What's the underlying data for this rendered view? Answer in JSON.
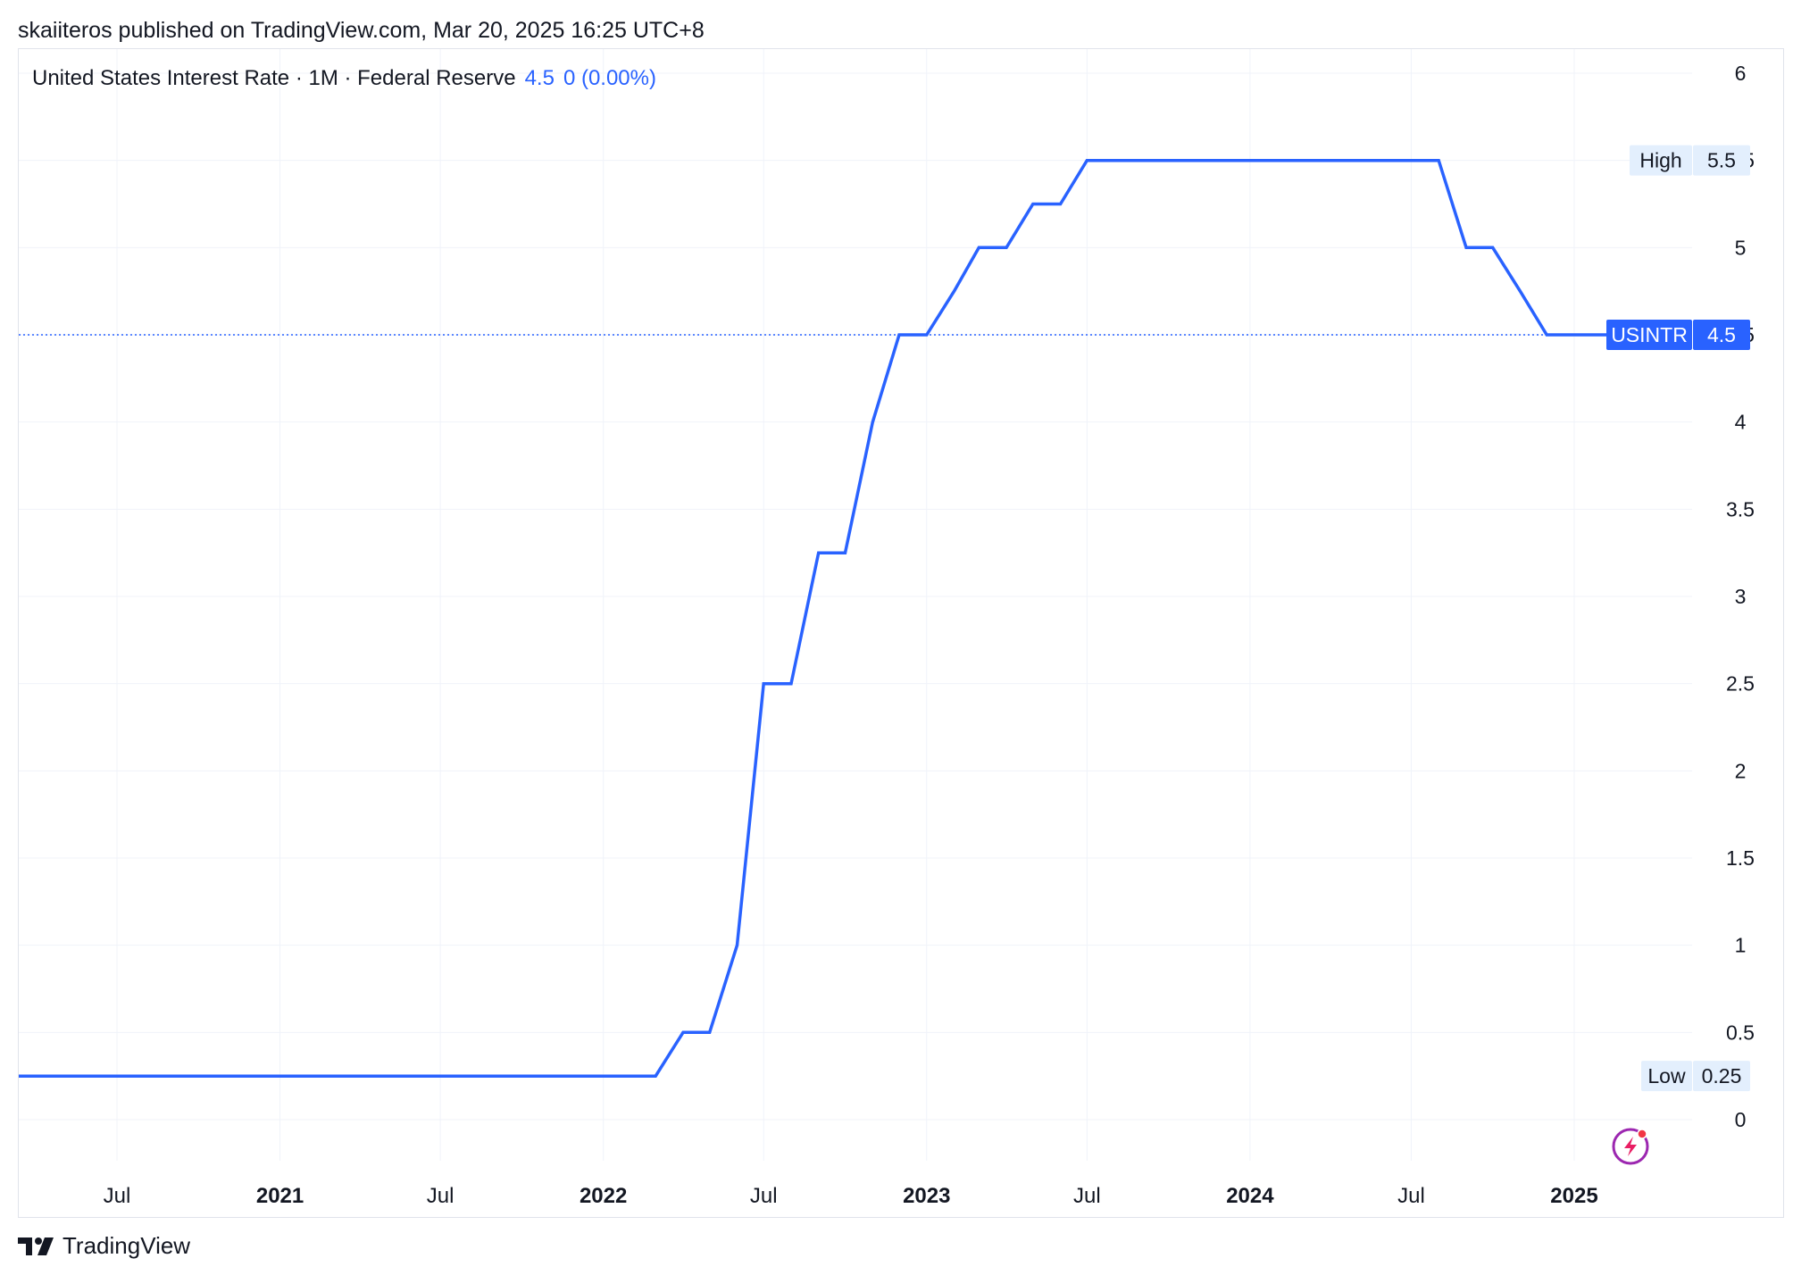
{
  "header": {
    "text": "skaiiteros published on TradingView.com, Mar 20, 2025 16:25 UTC+8"
  },
  "legend": {
    "title": "United States Interest Rate · 1M · Federal Reserve",
    "value": "4.5",
    "change": "0 (0.00%)"
  },
  "brand": {
    "name": "TradingView"
  },
  "colors": {
    "series": "#2962ff",
    "grid": "#f0f3fa",
    "label_bg": "#e3effd",
    "axis_text": "#131722"
  },
  "icons": {
    "brand_logo": "tradingview-logo-icon",
    "flash": "lightning-icon"
  },
  "chart_data": {
    "type": "line",
    "title": "United States Interest Rate · 1M · Federal Reserve",
    "xlabel": "",
    "ylabel": "",
    "ylim": [
      -0.25,
      6.2
    ],
    "y_ticks": [
      "6",
      "5.5",
      "5",
      "4.5",
      "4",
      "3.5",
      "3",
      "2.5",
      "2",
      "1.5",
      "1",
      "0.5",
      "0"
    ],
    "x_ticks": [
      {
        "label": "Jul",
        "date": "2020-07",
        "bold": false
      },
      {
        "label": "2021",
        "date": "2021-01",
        "bold": true
      },
      {
        "label": "Jul",
        "date": "2021-07",
        "bold": false
      },
      {
        "label": "2022",
        "date": "2022-01",
        "bold": true
      },
      {
        "label": "Jul",
        "date": "2022-07",
        "bold": false
      },
      {
        "label": "2023",
        "date": "2023-01",
        "bold": true
      },
      {
        "label": "Jul",
        "date": "2023-07",
        "bold": false
      },
      {
        "label": "2024",
        "date": "2024-01",
        "bold": true
      },
      {
        "label": "Jul",
        "date": "2024-07",
        "bold": false
      },
      {
        "label": "2025",
        "date": "2025-01",
        "bold": true
      }
    ],
    "x_range": [
      "2020-03-12",
      "2025-06-15"
    ],
    "grid": true,
    "series": [
      {
        "name": "USINTR",
        "points": [
          [
            "2020-03-12",
            0.25
          ],
          [
            "2022-03-01",
            0.25
          ],
          [
            "2022-04-01",
            0.5
          ],
          [
            "2022-05-01",
            0.5
          ],
          [
            "2022-06-01",
            1.0
          ],
          [
            "2022-07-01",
            2.5
          ],
          [
            "2022-08-01",
            2.5
          ],
          [
            "2022-09-01",
            3.25
          ],
          [
            "2022-10-01",
            3.25
          ],
          [
            "2022-11-01",
            4.0
          ],
          [
            "2022-12-01",
            4.5
          ],
          [
            "2023-01-01",
            4.5
          ],
          [
            "2023-02-01",
            4.75
          ],
          [
            "2023-03-01",
            5.0
          ],
          [
            "2023-04-01",
            5.0
          ],
          [
            "2023-05-01",
            5.25
          ],
          [
            "2023-06-01",
            5.25
          ],
          [
            "2023-07-01",
            5.5
          ],
          [
            "2024-08-01",
            5.5
          ],
          [
            "2024-09-01",
            5.0
          ],
          [
            "2024-10-01",
            5.0
          ],
          [
            "2024-11-01",
            4.75
          ],
          [
            "2024-12-01",
            4.5
          ],
          [
            "2025-03-01",
            4.5
          ]
        ]
      }
    ],
    "price_labels": [
      {
        "tag": "High",
        "value": "5.5",
        "y": 5.5,
        "style": "light"
      },
      {
        "tag": "USINTR",
        "value": "4.5",
        "y": 4.5,
        "style": "solid"
      },
      {
        "tag": "Low",
        "value": "0.25",
        "y": 0.25,
        "style": "light"
      }
    ],
    "current_line": 4.5
  }
}
